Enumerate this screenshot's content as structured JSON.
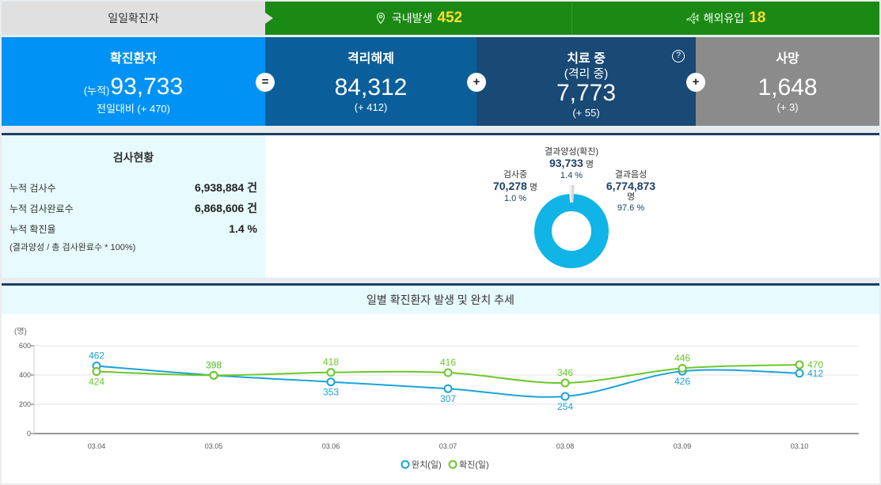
{
  "topbar": {
    "label": "일일확진자",
    "domestic": {
      "label": "국내발생",
      "value": "452"
    },
    "overseas": {
      "label": "해외유입",
      "value": "18"
    }
  },
  "cards": {
    "confirmed": {
      "title": "확진환자",
      "prefix": "(누적)",
      "value": "93,733",
      "sub": "전일대비 (+ 470)"
    },
    "released": {
      "title": "격리해제",
      "value": "84,312",
      "sub": "(+ 412)"
    },
    "treating": {
      "title": "치료 중",
      "title2": "(격리 중)",
      "value": "7,773",
      "sub": "(+ 55)"
    },
    "deaths": {
      "title": "사망",
      "value": "1,648",
      "sub": "(+ 3)"
    },
    "op_eq": "=",
    "op_plus": "+",
    "help": "?"
  },
  "testing": {
    "title": "검사현황",
    "rows": [
      {
        "label": "누적 검사수",
        "value": "6,938,884 건"
      },
      {
        "label": "누적 검사완료수",
        "value": "6,868,606 건"
      },
      {
        "label": "누적 확진율",
        "value": "1.4 %"
      }
    ],
    "note": "(결과양성 / 총 검사완료수 * 100%)",
    "pie": {
      "positive": {
        "label": "결과양성(확진)",
        "value": "93,733",
        "unit": "명",
        "pct": "1.4 %"
      },
      "testing": {
        "label": "검사중",
        "value": "70,278",
        "unit": "명",
        "pct": "1.0 %"
      },
      "negative": {
        "label": "결과음성",
        "value": "6,774,873",
        "unit": "명",
        "pct": "97.6 %"
      }
    }
  },
  "chart_data": {
    "type": "line",
    "title": "일별 확진환자 발생 및 완치 추세",
    "ylabel": "(명)",
    "ylim": [
      0,
      600
    ],
    "yticks": [
      "0",
      "200",
      "400",
      "600"
    ],
    "categories": [
      "03.04",
      "03.05",
      "03.06",
      "03.07",
      "03.08",
      "03.09",
      "03.10"
    ],
    "series": [
      {
        "name": "완치(일)",
        "color": "#1aa3d9",
        "values": [
          462,
          398,
          353,
          307,
          254,
          426,
          412
        ]
      },
      {
        "name": "확진(일)",
        "color": "#6cc72a",
        "values": [
          424,
          398,
          418,
          416,
          346,
          446,
          470
        ]
      }
    ],
    "grid": true,
    "legend": "bottom-center"
  },
  "colors": {
    "brand_blue": "#0092f5",
    "green": "#1b8a15",
    "navy": "#1d3f66",
    "pie_main": "#10b4e6"
  }
}
